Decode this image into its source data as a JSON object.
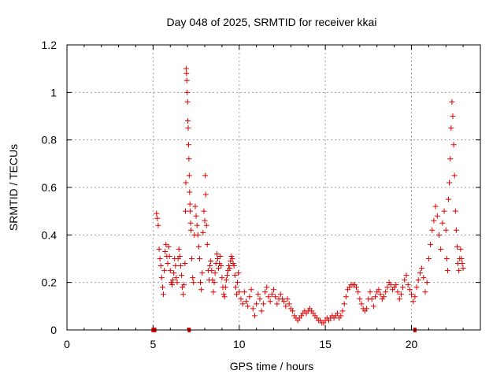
{
  "chart_data": {
    "type": "scatter",
    "title": "Day 048 of 2025, SRMTID for receiver kkai",
    "xlabel": "GPS time / hours",
    "ylabel": "SRMTID / TECUs",
    "xlim": [
      0,
      24
    ],
    "ylim": [
      0,
      1.2
    ],
    "xticks": [
      0,
      5,
      10,
      15,
      20
    ],
    "xtick_labels": [
      "0",
      "5",
      "10",
      "15",
      "20"
    ],
    "yticks": [
      0,
      0.2,
      0.4,
      0.6,
      0.8,
      1.0,
      1.2
    ],
    "ytick_labels": [
      "0",
      "0.2",
      "0.4",
      "0.6",
      "0.8",
      "1",
      "1.2"
    ],
    "grid": true,
    "marker": "+",
    "color": "#e00000",
    "series": [
      {
        "name": "SRMTID",
        "points": [
          [
            5.2,
            0.49
          ],
          [
            5.25,
            0.47
          ],
          [
            5.3,
            0.44
          ],
          [
            5.35,
            0.34
          ],
          [
            5.4,
            0.3
          ],
          [
            5.45,
            0.27
          ],
          [
            5.5,
            0.22
          ],
          [
            5.55,
            0.18
          ],
          [
            5.6,
            0.15
          ],
          [
            5.65,
            0.25
          ],
          [
            5.7,
            0.33
          ],
          [
            5.75,
            0.36
          ],
          [
            5.8,
            0.31
          ],
          [
            5.85,
            0.28
          ],
          [
            5.9,
            0.35
          ],
          [
            5.95,
            0.31
          ],
          [
            6.0,
            0.25
          ],
          [
            6.05,
            0.2
          ],
          [
            6.1,
            0.19
          ],
          [
            6.15,
            0.21
          ],
          [
            6.2,
            0.24
          ],
          [
            6.25,
            0.3
          ],
          [
            6.3,
            0.27
          ],
          [
            6.35,
            0.22
          ],
          [
            6.4,
            0.2
          ],
          [
            6.45,
            0.3
          ],
          [
            6.5,
            0.34
          ],
          [
            6.55,
            0.31
          ],
          [
            6.6,
            0.27
          ],
          [
            6.65,
            0.23
          ],
          [
            6.7,
            0.18
          ],
          [
            6.75,
            0.15
          ],
          [
            6.8,
            0.19
          ],
          [
            6.85,
            0.28
          ],
          [
            6.88,
            0.5
          ],
          [
            6.9,
            0.62
          ],
          [
            6.92,
            1.1
          ],
          [
            6.94,
            1.08
          ],
          [
            6.96,
            1.05
          ],
          [
            6.98,
            1.0
          ],
          [
            7.0,
            0.96
          ],
          [
            7.02,
            0.88
          ],
          [
            7.04,
            0.85
          ],
          [
            7.06,
            0.78
          ],
          [
            7.08,
            0.72
          ],
          [
            7.1,
            0.65
          ],
          [
            7.12,
            0.58
          ],
          [
            7.14,
            0.53
          ],
          [
            7.16,
            0.5
          ],
          [
            7.18,
            0.45
          ],
          [
            7.2,
            0.42
          ],
          [
            7.25,
            0.3
          ],
          [
            7.3,
            0.22
          ],
          [
            7.35,
            0.2
          ],
          [
            7.4,
            0.4
          ],
          [
            7.45,
            0.52
          ],
          [
            7.5,
            0.48
          ],
          [
            7.55,
            0.44
          ],
          [
            7.6,
            0.4
          ],
          [
            7.65,
            0.35
          ],
          [
            7.7,
            0.3
          ],
          [
            7.75,
            0.2
          ],
          [
            7.8,
            0.17
          ],
          [
            7.85,
            0.24
          ],
          [
            7.9,
            0.41
          ],
          [
            7.95,
            0.5
          ],
          [
            8.0,
            0.46
          ],
          [
            8.03,
            0.65
          ],
          [
            8.06,
            0.57
          ],
          [
            8.1,
            0.44
          ],
          [
            8.15,
            0.36
          ],
          [
            8.2,
            0.25
          ],
          [
            8.25,
            0.21
          ],
          [
            8.3,
            0.27
          ],
          [
            8.35,
            0.29
          ],
          [
            8.4,
            0.25
          ],
          [
            8.45,
            0.21
          ],
          [
            8.5,
            0.16
          ],
          [
            8.55,
            0.2
          ],
          [
            8.6,
            0.24
          ],
          [
            8.65,
            0.28
          ],
          [
            8.7,
            0.32
          ],
          [
            8.75,
            0.3
          ],
          [
            8.8,
            0.26
          ],
          [
            8.85,
            0.28
          ],
          [
            8.9,
            0.31
          ],
          [
            8.95,
            0.27
          ],
          [
            9.0,
            0.22
          ],
          [
            9.05,
            0.18
          ],
          [
            9.1,
            0.15
          ],
          [
            9.15,
            0.14
          ],
          [
            9.2,
            0.18
          ],
          [
            9.25,
            0.21
          ],
          [
            9.3,
            0.23
          ],
          [
            9.35,
            0.25
          ],
          [
            9.4,
            0.27
          ],
          [
            9.45,
            0.26
          ],
          [
            9.5,
            0.29
          ],
          [
            9.55,
            0.31
          ],
          [
            9.6,
            0.3
          ],
          [
            9.65,
            0.28
          ],
          [
            9.7,
            0.27
          ],
          [
            9.75,
            0.23
          ],
          [
            9.8,
            0.18
          ],
          [
            9.85,
            0.15
          ],
          [
            9.9,
            0.2
          ],
          [
            9.95,
            0.24
          ],
          [
            10.0,
            0.16
          ],
          [
            10.1,
            0.13
          ],
          [
            10.2,
            0.11
          ],
          [
            10.3,
            0.16
          ],
          [
            10.4,
            0.12
          ],
          [
            10.5,
            0.1
          ],
          [
            10.6,
            0.14
          ],
          [
            10.7,
            0.17
          ],
          [
            10.8,
            0.09
          ],
          [
            10.9,
            0.06
          ],
          [
            11.0,
            0.11
          ],
          [
            11.1,
            0.15
          ],
          [
            11.2,
            0.13
          ],
          [
            11.3,
            0.08
          ],
          [
            11.4,
            0.11
          ],
          [
            11.5,
            0.16
          ],
          [
            11.6,
            0.18
          ],
          [
            11.7,
            0.14
          ],
          [
            11.8,
            0.12
          ],
          [
            11.9,
            0.15
          ],
          [
            12.0,
            0.17
          ],
          [
            12.1,
            0.14
          ],
          [
            12.2,
            0.11
          ],
          [
            12.3,
            0.13
          ],
          [
            12.4,
            0.15
          ],
          [
            12.5,
            0.13
          ],
          [
            12.6,
            0.12
          ],
          [
            12.7,
            0.1
          ],
          [
            12.8,
            0.13
          ],
          [
            12.9,
            0.11
          ],
          [
            13.0,
            0.09
          ],
          [
            13.1,
            0.08
          ],
          [
            13.2,
            0.06
          ],
          [
            13.3,
            0.05
          ],
          [
            13.4,
            0.04
          ],
          [
            13.5,
            0.05
          ],
          [
            13.6,
            0.06
          ],
          [
            13.7,
            0.07
          ],
          [
            13.8,
            0.08
          ],
          [
            13.9,
            0.07
          ],
          [
            14.0,
            0.08
          ],
          [
            14.1,
            0.09
          ],
          [
            14.2,
            0.08
          ],
          [
            14.3,
            0.07
          ],
          [
            14.4,
            0.06
          ],
          [
            14.5,
            0.05
          ],
          [
            14.6,
            0.04
          ],
          [
            14.7,
            0.04
          ],
          [
            14.8,
            0.03
          ],
          [
            14.9,
            0.03
          ],
          [
            15.0,
            0.04
          ],
          [
            15.1,
            0.05
          ],
          [
            15.2,
            0.04
          ],
          [
            15.3,
            0.05
          ],
          [
            15.4,
            0.06
          ],
          [
            15.5,
            0.05
          ],
          [
            15.6,
            0.06
          ],
          [
            15.7,
            0.07
          ],
          [
            15.8,
            0.05
          ],
          [
            15.9,
            0.06
          ],
          [
            16.0,
            0.08
          ],
          [
            16.1,
            0.11
          ],
          [
            16.2,
            0.14
          ],
          [
            16.3,
            0.17
          ],
          [
            16.4,
            0.18
          ],
          [
            16.5,
            0.19
          ],
          [
            16.6,
            0.19
          ],
          [
            16.7,
            0.19
          ],
          [
            16.8,
            0.18
          ],
          [
            16.9,
            0.16
          ],
          [
            17.0,
            0.13
          ],
          [
            17.1,
            0.11
          ],
          [
            17.2,
            0.09
          ],
          [
            17.3,
            0.08
          ],
          [
            17.4,
            0.09
          ],
          [
            17.5,
            0.13
          ],
          [
            17.6,
            0.16
          ],
          [
            17.7,
            0.13
          ],
          [
            17.8,
            0.1
          ],
          [
            17.9,
            0.14
          ],
          [
            18.0,
            0.16
          ],
          [
            18.1,
            0.17
          ],
          [
            18.2,
            0.15
          ],
          [
            18.3,
            0.13
          ],
          [
            18.4,
            0.14
          ],
          [
            18.5,
            0.16
          ],
          [
            18.6,
            0.18
          ],
          [
            18.7,
            0.2
          ],
          [
            18.8,
            0.19
          ],
          [
            18.9,
            0.17
          ],
          [
            19.0,
            0.18
          ],
          [
            19.1,
            0.19
          ],
          [
            19.2,
            0.16
          ],
          [
            19.3,
            0.13
          ],
          [
            19.4,
            0.15
          ],
          [
            19.5,
            0.18
          ],
          [
            19.6,
            0.21
          ],
          [
            19.7,
            0.23
          ],
          [
            19.8,
            0.19
          ],
          [
            19.9,
            0.17
          ],
          [
            20.0,
            0.15
          ],
          [
            20.1,
            0.12
          ],
          [
            20.2,
            0.14
          ],
          [
            20.3,
            0.18
          ],
          [
            20.4,
            0.21
          ],
          [
            20.5,
            0.24
          ],
          [
            20.6,
            0.26
          ],
          [
            20.7,
            0.22
          ],
          [
            20.8,
            0.16
          ],
          [
            20.9,
            0.2
          ],
          [
            21.0,
            0.3
          ],
          [
            21.1,
            0.36
          ],
          [
            21.2,
            0.42
          ],
          [
            21.3,
            0.46
          ],
          [
            21.4,
            0.52
          ],
          [
            21.5,
            0.48
          ],
          [
            21.6,
            0.4
          ],
          [
            21.7,
            0.34
          ],
          [
            21.8,
            0.45
          ],
          [
            21.9,
            0.5
          ],
          [
            22.0,
            0.42
          ],
          [
            22.05,
            0.3
          ],
          [
            22.1,
            0.25
          ],
          [
            22.15,
            0.55
          ],
          [
            22.2,
            0.62
          ],
          [
            22.25,
            0.72
          ],
          [
            22.3,
            0.85
          ],
          [
            22.35,
            0.96
          ],
          [
            22.4,
            0.9
          ],
          [
            22.45,
            0.78
          ],
          [
            22.5,
            0.65
          ],
          [
            22.55,
            0.5
          ],
          [
            22.6,
            0.42
          ],
          [
            22.65,
            0.35
          ],
          [
            22.7,
            0.28
          ],
          [
            22.75,
            0.25
          ],
          [
            22.8,
            0.3
          ],
          [
            22.85,
            0.34
          ],
          [
            22.9,
            0.3
          ],
          [
            22.95,
            0.28
          ],
          [
            23.0,
            0.26
          ]
        ]
      }
    ],
    "axis_markers_x": [
      5.0,
      5.1,
      7.1,
      20.2
    ]
  }
}
